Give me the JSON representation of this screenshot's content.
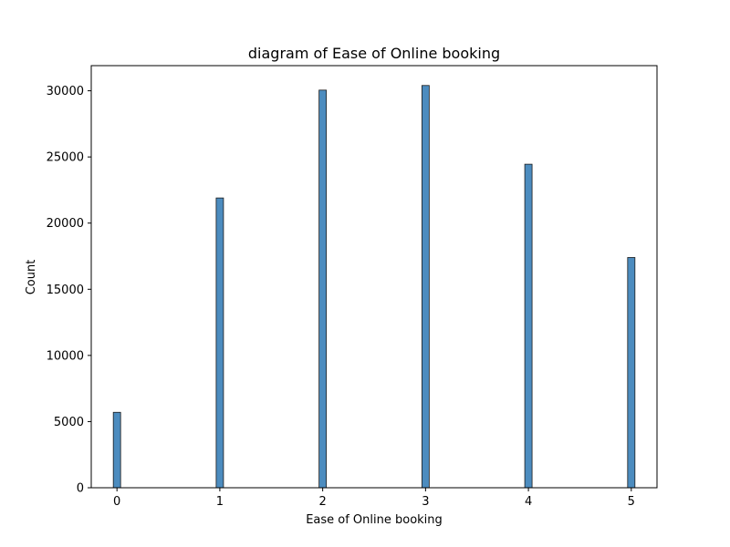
{
  "chart_data": {
    "type": "bar",
    "title": "diagram of Ease of Online booking",
    "xlabel": "Ease of Online booking",
    "ylabel": "Count",
    "x": [
      0,
      1,
      2,
      3,
      4,
      5
    ],
    "values": [
      5700,
      21900,
      30050,
      30400,
      24450,
      17400
    ],
    "xlim": [
      -0.25,
      5.25
    ],
    "ylim": [
      0,
      31900
    ],
    "xticks": [
      "0",
      "1",
      "2",
      "3",
      "4",
      "5"
    ],
    "yticks": [
      "0",
      "5000",
      "10000",
      "15000",
      "20000",
      "25000",
      "30000"
    ],
    "grid": false,
    "bar_color": "#4c8cbf",
    "edge_color": "#1a1a1a"
  }
}
